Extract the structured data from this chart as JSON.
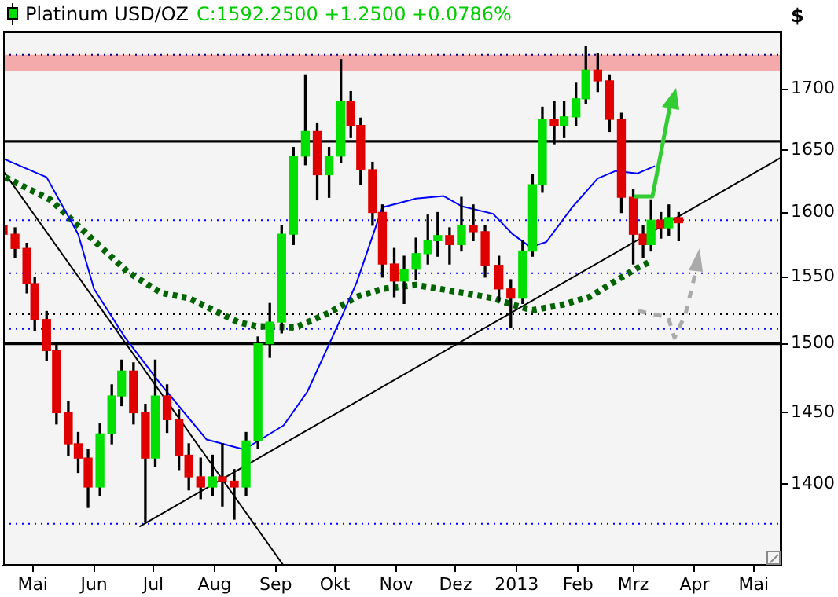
{
  "chart_data": {
    "type": "candlestick",
    "title": "Platinum USD/OZ",
    "subtitle": "C:1592.2500 +1.2500 +0.0786%",
    "ylabel": "$",
    "x": [
      "2012-04-16",
      "2012-04-22",
      "2012-04-28",
      "2012-05-02",
      "2012-05-08",
      "2012-05-13",
      "2012-05-19",
      "2012-05-24",
      "2012-05-29",
      "2012-06-04",
      "2012-06-10",
      "2012-06-15",
      "2012-06-21",
      "2012-06-27",
      "2012-07-02",
      "2012-07-08",
      "2012-07-14",
      "2012-07-19",
      "2012-07-25",
      "2012-07-31",
      "2012-08-05",
      "2012-08-11",
      "2012-08-17",
      "2012-08-23",
      "2012-08-29",
      "2012-09-04",
      "2012-09-10",
      "2012-09-16",
      "2012-09-22",
      "2012-09-28",
      "2012-10-04",
      "2012-10-09",
      "2012-10-14",
      "2012-10-20",
      "2012-10-25",
      "2012-10-31",
      "2012-11-05",
      "2012-11-11",
      "2012-11-17",
      "2012-11-22",
      "2012-11-28",
      "2012-12-04",
      "2012-12-10",
      "2012-12-16",
      "2012-12-23",
      "2012-12-29",
      "2013-01-04",
      "2013-01-09",
      "2013-01-14",
      "2013-01-20",
      "2013-01-25",
      "2013-01-31",
      "2013-02-05",
      "2013-02-11",
      "2013-02-17",
      "2013-02-23",
      "2013-03-01",
      "2013-03-06",
      "2013-03-10",
      "2013-03-15",
      "2013-03-19",
      "2013-03-24"
    ],
    "ohlc": [
      [
        1590,
        1596,
        1576,
        1583
      ],
      [
        1583,
        1588,
        1565,
        1572
      ],
      [
        1572,
        1576,
        1538,
        1545
      ],
      [
        1545,
        1550,
        1510,
        1518
      ],
      [
        1518,
        1524,
        1488,
        1495
      ],
      [
        1495,
        1500,
        1442,
        1450
      ],
      [
        1450,
        1458,
        1420,
        1428
      ],
      [
        1428,
        1436,
        1408,
        1418
      ],
      [
        1418,
        1424,
        1384,
        1398
      ],
      [
        1398,
        1442,
        1392,
        1435
      ],
      [
        1435,
        1470,
        1428,
        1462
      ],
      [
        1462,
        1488,
        1455,
        1480
      ],
      [
        1480,
        1486,
        1442,
        1450
      ],
      [
        1450,
        1456,
        1374,
        1418
      ],
      [
        1418,
        1488,
        1412,
        1462
      ],
      [
        1462,
        1470,
        1436,
        1445
      ],
      [
        1445,
        1452,
        1410,
        1420
      ],
      [
        1420,
        1428,
        1396,
        1405
      ],
      [
        1405,
        1418,
        1390,
        1398
      ],
      [
        1398,
        1420,
        1392,
        1405
      ],
      [
        1405,
        1428,
        1385,
        1402
      ],
      [
        1402,
        1410,
        1376,
        1398
      ],
      [
        1398,
        1436,
        1392,
        1430
      ],
      [
        1430,
        1505,
        1425,
        1500
      ],
      [
        1500,
        1530,
        1490,
        1516
      ],
      [
        1516,
        1590,
        1508,
        1583
      ],
      [
        1583,
        1652,
        1575,
        1645
      ],
      [
        1645,
        1712,
        1638,
        1665
      ],
      [
        1665,
        1672,
        1610,
        1630
      ],
      [
        1630,
        1652,
        1612,
        1645
      ],
      [
        1645,
        1725,
        1640,
        1690
      ],
      [
        1690,
        1698,
        1660,
        1670
      ],
      [
        1670,
        1676,
        1622,
        1634
      ],
      [
        1634,
        1640,
        1590,
        1600
      ],
      [
        1600,
        1606,
        1550,
        1560
      ],
      [
        1560,
        1572,
        1535,
        1547
      ],
      [
        1547,
        1566,
        1530,
        1556
      ],
      [
        1556,
        1580,
        1548,
        1568
      ],
      [
        1568,
        1598,
        1560,
        1578
      ],
      [
        1578,
        1600,
        1566,
        1582
      ],
      [
        1582,
        1588,
        1560,
        1575
      ],
      [
        1575,
        1612,
        1570,
        1590
      ],
      [
        1590,
        1606,
        1578,
        1585
      ],
      [
        1585,
        1590,
        1550,
        1559
      ],
      [
        1559,
        1566,
        1532,
        1541
      ],
      [
        1541,
        1548,
        1512,
        1534
      ],
      [
        1534,
        1578,
        1530,
        1570
      ],
      [
        1570,
        1630,
        1566,
        1622
      ],
      [
        1622,
        1685,
        1616,
        1675
      ],
      [
        1675,
        1690,
        1655,
        1670
      ],
      [
        1670,
        1690,
        1660,
        1677
      ],
      [
        1677,
        1705,
        1670,
        1692
      ],
      [
        1692,
        1736,
        1688,
        1716
      ],
      [
        1716,
        1730,
        1698,
        1707
      ],
      [
        1707,
        1712,
        1665,
        1675
      ],
      [
        1675,
        1680,
        1600,
        1612
      ],
      [
        1612,
        1618,
        1560,
        1583
      ],
      [
        1583,
        1590,
        1565,
        1575
      ],
      [
        1575,
        1610,
        1570,
        1594
      ],
      [
        1594,
        1600,
        1580,
        1588
      ],
      [
        1588,
        1606,
        1582,
        1596
      ],
      [
        1596,
        1600,
        1578,
        1592
      ]
    ],
    "series": [
      {
        "type": "line",
        "color": "#0000ff",
        "line_style": "solid",
        "x": [
          "2012-04-16",
          "2012-05-08",
          "2012-05-24",
          "2012-06-01",
          "2012-06-17",
          "2012-07-05",
          "2012-07-28",
          "2012-08-16",
          "2012-09-05",
          "2012-09-17",
          "2012-10-05",
          "2012-10-12",
          "2012-10-25",
          "2012-11-11",
          "2012-11-25",
          "2012-12-04",
          "2012-12-20",
          "2012-12-30",
          "2013-01-08",
          "2013-01-16",
          "2013-01-29",
          "2013-02-11",
          "2013-02-20",
          "2013-03-03",
          "2013-03-12"
        ],
        "values": [
          1643,
          1628,
          1583,
          1541,
          1504,
          1470,
          1431,
          1424,
          1441,
          1465,
          1522,
          1546,
          1604,
          1611,
          1613,
          1605,
          1599,
          1583,
          1573,
          1577,
          1604,
          1627,
          1633,
          1631,
          1637
        ]
      },
      {
        "type": "line",
        "color": "#006400",
        "line_style": "dotted",
        "x": [
          "2012-04-17",
          "2012-05-10",
          "2012-06-01",
          "2012-06-18",
          "2012-07-05",
          "2012-07-19",
          "2012-08-13",
          "2012-08-22",
          "2012-09-11",
          "2012-09-28",
          "2012-10-12",
          "2012-10-25",
          "2012-11-11",
          "2012-11-27",
          "2012-12-20",
          "2012-12-30",
          "2013-01-09",
          "2013-01-24",
          "2013-02-07",
          "2013-02-20",
          "2013-03-03",
          "2013-03-10"
        ],
        "values": [
          1628,
          1610,
          1578,
          1554,
          1538,
          1534,
          1516,
          1513,
          1512,
          1523,
          1535,
          1541,
          1544,
          1540,
          1534,
          1529,
          1525,
          1529,
          1535,
          1547,
          1557,
          1562
        ]
      },
      {
        "type": "line",
        "color": "#000000",
        "line_style": "solid",
        "x": [
          "2012-04-16",
          "2012-09-05"
        ],
        "values": [
          1633,
          1345
        ]
      },
      {
        "type": "line",
        "color": "#000000",
        "line_style": "solid",
        "x": [
          "2012-06-24",
          "2013-05-15"
        ],
        "values": [
          1371,
          1644
        ]
      }
    ],
    "ref_lines": [
      {
        "axis": "y",
        "value": 1729,
        "color": "#000080",
        "line_style": "dotted"
      },
      {
        "axis": "y",
        "value": 1657,
        "color": "#000000",
        "line_style": "solid"
      },
      {
        "axis": "y",
        "value": 1594,
        "color": "#0000ff",
        "line_style": "dotted"
      },
      {
        "axis": "y",
        "value": 1553,
        "color": "#0000ff",
        "line_style": "dotted"
      },
      {
        "axis": "y",
        "value": 1522,
        "color": "#000000",
        "line_style": "dotted"
      },
      {
        "axis": "y",
        "value": 1511,
        "color": "#0000ff",
        "line_style": "dotted"
      },
      {
        "axis": "y",
        "value": 1500,
        "color": "#000000",
        "line_style": "solid"
      },
      {
        "axis": "y",
        "value": 1373,
        "color": "#0000ff",
        "line_style": "dotted"
      }
    ],
    "bands": [
      {
        "axis": "y",
        "from": 1715,
        "to": 1729,
        "color": "#f4aaaa"
      }
    ],
    "xlim": [
      "2012-04-16",
      "2013-05-15"
    ],
    "xticks": [
      {
        "value": "2012-05-01",
        "label": "Mai"
      },
      {
        "value": "2012-06-01",
        "label": "Jun"
      },
      {
        "value": "2012-07-01",
        "label": "Jul"
      },
      {
        "value": "2012-08-01",
        "label": "Aug"
      },
      {
        "value": "2012-09-01",
        "label": "Sep"
      },
      {
        "value": "2012-10-01",
        "label": "Okt"
      },
      {
        "value": "2012-11-01",
        "label": "Nov"
      },
      {
        "value": "2012-12-01",
        "label": "Dez"
      },
      {
        "value": "2013-01-01",
        "label": "2013"
      },
      {
        "value": "2013-02-01",
        "label": "Feb"
      },
      {
        "value": "2013-03-01",
        "label": "Mrz"
      },
      {
        "value": "2013-04-01",
        "label": "Apr"
      },
      {
        "value": "2013-05-01",
        "label": "Mai"
      }
    ],
    "ylim": [
      1345,
      1749
    ],
    "yticks": [
      1400,
      1450,
      1500,
      1550,
      1600,
      1650,
      1700
    ],
    "log": true,
    "grid": false
  }
}
